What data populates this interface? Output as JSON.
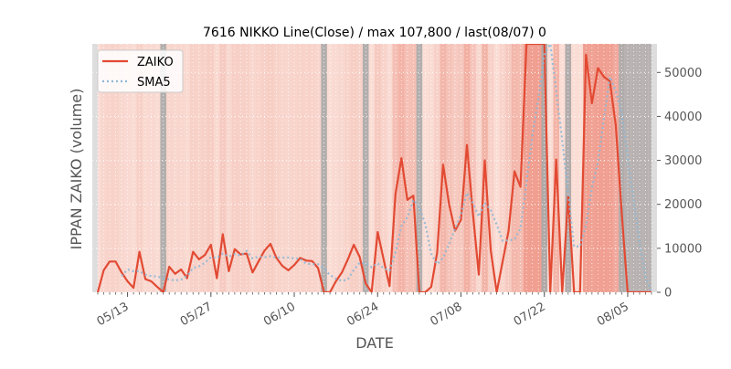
{
  "chart_data": {
    "type": "line",
    "title": "7616 NIKKO Line(Close) / max 107,800 / last(08/07) 0",
    "xlabel": "DATE",
    "ylabel": "IPPAN ZAIKO (volume)",
    "ylim": [
      0,
      56500
    ],
    "y_ticks": [
      {
        "value": 0,
        "label": "0"
      },
      {
        "value": 10000,
        "label": "10000"
      },
      {
        "value": 20000,
        "label": "20000"
      },
      {
        "value": 30000,
        "label": "30000"
      },
      {
        "value": 40000,
        "label": "40000"
      },
      {
        "value": 50000,
        "label": "50000"
      }
    ],
    "x_ticks": [
      {
        "label": "05/13",
        "index": 5
      },
      {
        "label": "05/27",
        "index": 19
      },
      {
        "label": "06/10",
        "index": 33
      },
      {
        "label": "06/24",
        "index": 47
      },
      {
        "label": "07/08",
        "index": 61
      },
      {
        "label": "07/22",
        "index": 75
      },
      {
        "label": "08/05",
        "index": 89
      }
    ],
    "legend_placement": "top-left",
    "grid": true,
    "colors": {
      "zaiko": "#e24a33",
      "sma5": "#8eb8d6",
      "plot_bg": "#fbe5de",
      "weekend": "#aaaaaa"
    },
    "series": [
      {
        "name": "ZAIKO",
        "values": [
          0,
          5000,
          7000,
          7000,
          4500,
          2500,
          1000,
          9200,
          3000,
          2500,
          1200,
          0,
          5800,
          4200,
          5200,
          3200,
          9200,
          7500,
          8500,
          10800,
          3200,
          13200,
          4800,
          9800,
          8600,
          8800,
          4500,
          7000,
          9500,
          11000,
          7800,
          6000,
          5000,
          6200,
          7800,
          7200,
          7100,
          5500,
          0,
          0,
          2500,
          4500,
          7500,
          10800,
          8000,
          2000,
          0,
          13700,
          7500,
          1400,
          22300,
          30500,
          21000,
          22000,
          0,
          0,
          1200,
          9000,
          29000,
          20000,
          14000,
          16500,
          33500,
          18000,
          4000,
          30000,
          9500,
          0,
          7000,
          14000,
          27500,
          24000,
          56500,
          56500,
          56500,
          56500,
          0,
          30200,
          0,
          22000,
          0,
          0,
          54000,
          43000,
          51000,
          49000,
          48000,
          38000,
          18000,
          0,
          0,
          0,
          0,
          0
        ],
        "line_style": "solid"
      },
      {
        "name": "SMA5",
        "values": [
          null,
          null,
          null,
          null,
          3700,
          5200,
          4800,
          4800,
          4000,
          3700,
          3600,
          3200,
          2900,
          2700,
          2900,
          3700,
          5500,
          5900,
          6700,
          8000,
          7800,
          8800,
          8100,
          8700,
          8400,
          9400,
          7700,
          8100,
          8000,
          8200,
          7900,
          7900,
          7900,
          7700,
          7600,
          6500,
          6400,
          6400,
          5300,
          3900,
          3100,
          2600,
          2900,
          5100,
          6700,
          6600,
          5700,
          6600,
          5500,
          4900,
          9000,
          15000,
          17000,
          21000,
          19400,
          15500,
          8800,
          6400,
          7800,
          11000,
          14400,
          17700,
          22600,
          20300,
          17200,
          20400,
          18700,
          15400,
          11700,
          11800,
          12000,
          14500,
          25000,
          35800,
          44000,
          54000,
          56500,
          45800,
          34500,
          22400,
          10400,
          10400,
          15200,
          23800,
          29600,
          39400,
          49000,
          45800,
          40800,
          30600,
          20800,
          11200,
          3600,
          0
        ],
        "line_style": "dotted"
      }
    ]
  }
}
